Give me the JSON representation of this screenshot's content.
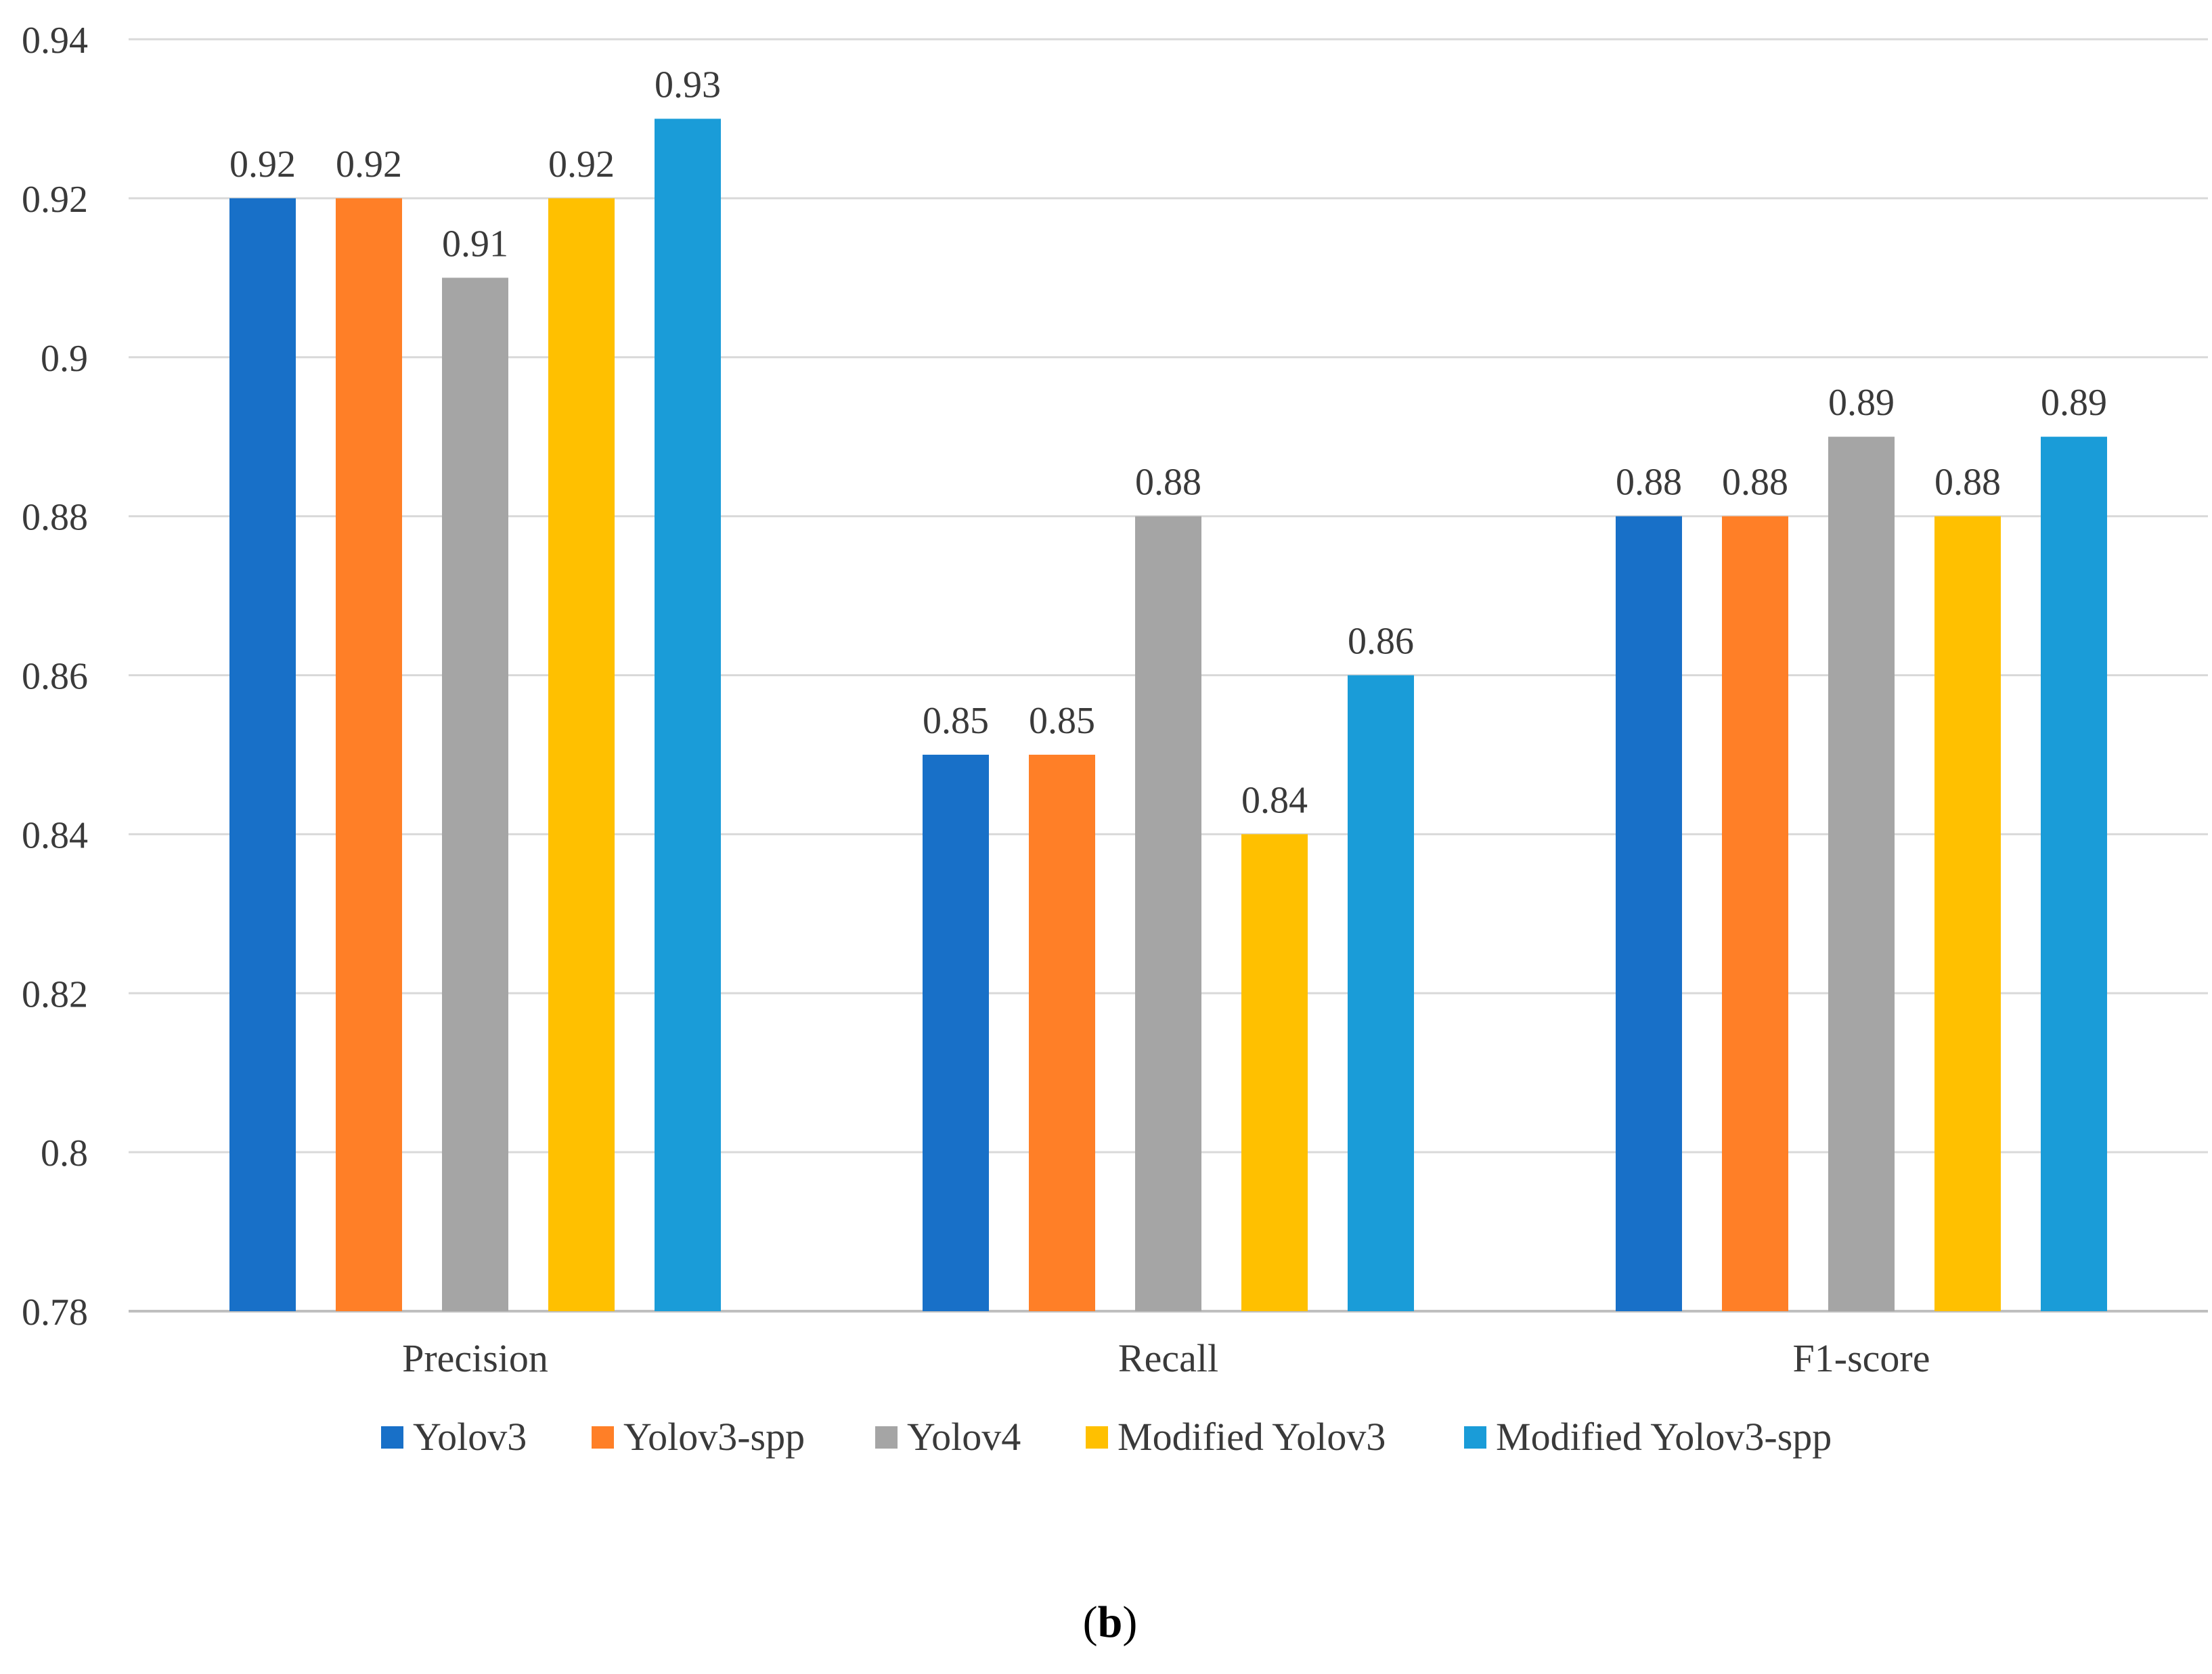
{
  "chart_data": {
    "type": "bar",
    "categories": [
      "Precision",
      "Recall",
      "F1-score"
    ],
    "series": [
      {
        "name": "Yolov3",
        "color": "#1870C8",
        "values": [
          0.92,
          0.85,
          0.88
        ]
      },
      {
        "name": "Yolov3-spp",
        "color": "#FF7F27",
        "values": [
          0.92,
          0.85,
          0.88
        ]
      },
      {
        "name": "Yolov4",
        "color": "#A5A5A5",
        "values": [
          0.91,
          0.88,
          0.89
        ]
      },
      {
        "name": "Modified Yolov3",
        "color": "#FFC000",
        "values": [
          0.92,
          0.84,
          0.88
        ]
      },
      {
        "name": "Modified Yolov3-spp",
        "color": "#1A9CD8",
        "values": [
          0.93,
          0.86,
          0.89
        ]
      }
    ],
    "yticks": [
      "0.78",
      "0.8",
      "0.82",
      "0.84",
      "0.86",
      "0.88",
      "0.9",
      "0.92",
      "0.94"
    ],
    "ylim": [
      0.78,
      0.94
    ],
    "grid": true,
    "legend": "bottom",
    "title": "",
    "xlabel": "",
    "ylabel": ""
  },
  "caption": {
    "open": "(",
    "letter": "b",
    "close": ")"
  }
}
